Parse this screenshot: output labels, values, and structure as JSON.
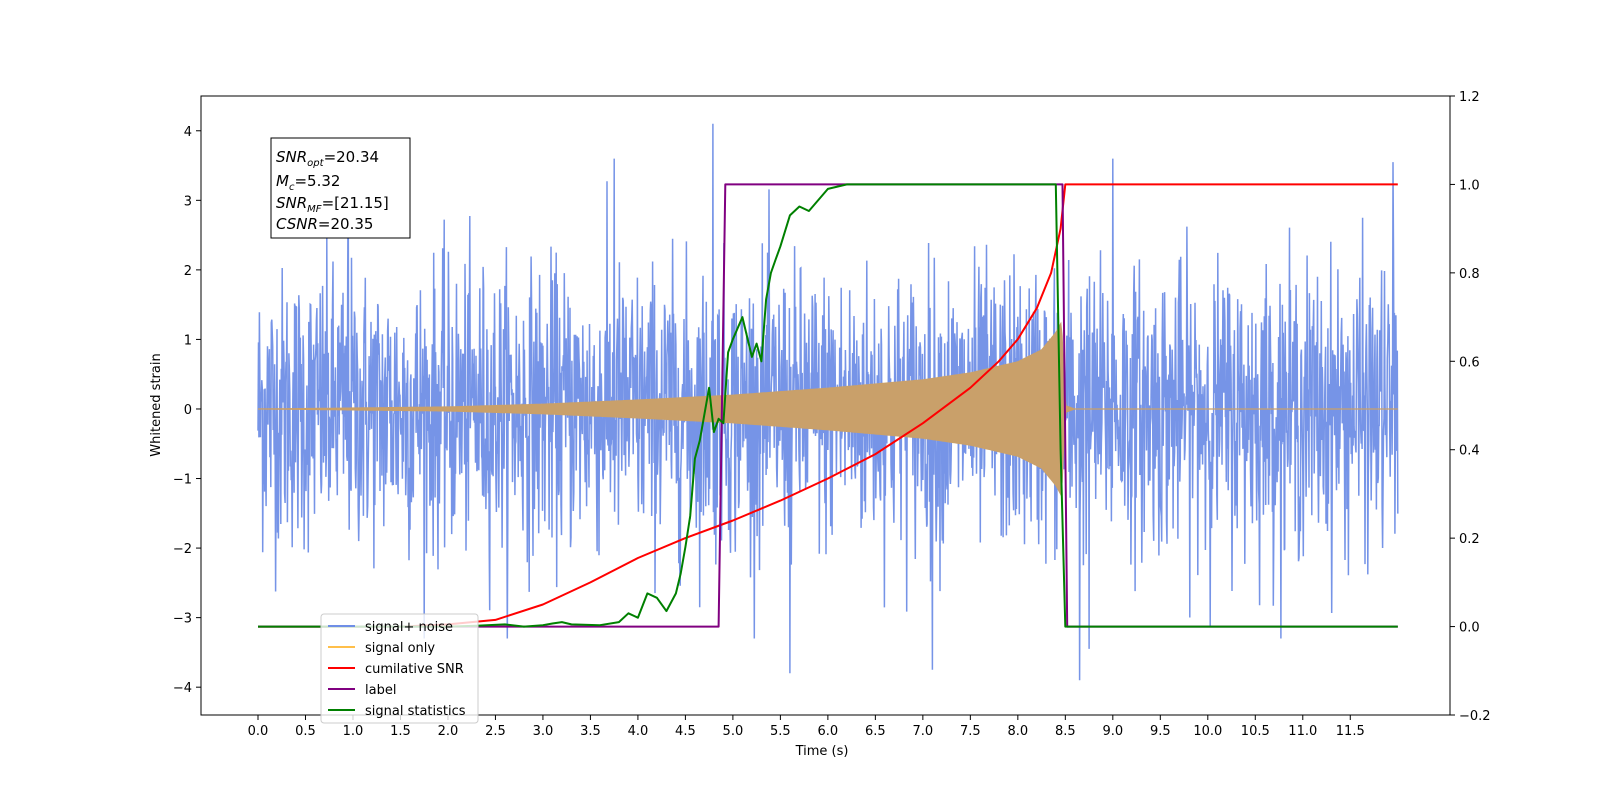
{
  "chart_data": {
    "type": "line",
    "title": "",
    "xlabel": "Time (s)",
    "ylabel": "Whitened strain",
    "xlim": [
      -0.6,
      12.55
    ],
    "ylim": [
      -4.4,
      4.5
    ],
    "y2lim": [
      -0.2,
      1.2
    ],
    "x_ticks": [
      "0.0",
      "0.5",
      "1.0",
      "1.5",
      "2.0",
      "2.5",
      "3.0",
      "3.5",
      "4.0",
      "4.5",
      "5.0",
      "5.5",
      "6.0",
      "6.5",
      "7.0",
      "7.5",
      "8.0",
      "8.5",
      "9.0",
      "9.5",
      "10.0",
      "10.5",
      "11.0",
      "11.5"
    ],
    "y_ticks": [
      "4",
      "3",
      "2",
      "1",
      "0",
      "−1",
      "−2",
      "−3",
      "−4"
    ],
    "y2_ticks": [
      "1.2",
      "1.0",
      "0.8",
      "0.6",
      "0.4",
      "0.2",
      "0.0",
      "−0.2"
    ],
    "grid": false,
    "legend_position": "lower-left",
    "legend": [
      {
        "label": "signal+ noise",
        "color": "#6f8ee6"
      },
      {
        "label": "signal only",
        "color": "#ffbf4a"
      },
      {
        "label": "cumilative SNR",
        "color": "#ff0000"
      },
      {
        "label": "label",
        "color": "#800080"
      },
      {
        "label": "signal statistics",
        "color": "#008000"
      }
    ],
    "info_box": {
      "lines": [
        {
          "name": "SNR",
          "sub": "opt",
          "rest": "=20.34"
        },
        {
          "name": "M",
          "sub": "c",
          "rest": "=5.32"
        },
        {
          "name": "SNR",
          "sub": "MF",
          "rest": "=[21.15]"
        },
        {
          "name": "CSNR",
          "sub": "",
          "rest": "=20.35"
        }
      ]
    },
    "series": [
      {
        "name": "signal+ noise",
        "axis": "left",
        "color": "#6f8ee6",
        "noise_sigma": 1.0,
        "x_range": [
          0.0,
          12.0
        ],
        "extremes": [
          {
            "x": 4.79,
            "y": 4.1
          },
          {
            "x": 5.6,
            "y": -3.8
          },
          {
            "x": 7.1,
            "y": -3.75
          },
          {
            "x": 8.65,
            "y": -3.9
          },
          {
            "x": 8.75,
            "y": -3.45
          },
          {
            "x": 9.0,
            "y": 3.6
          },
          {
            "x": 11.95,
            "y": 3.55
          },
          {
            "x": 3.75,
            "y": 3.6
          },
          {
            "x": 0.95,
            "y": 3.4
          }
        ]
      },
      {
        "name": "signal only",
        "axis": "left",
        "color": "#c9a06a",
        "envelope": [
          {
            "x": 0.0,
            "amp": 0.0
          },
          {
            "x": 2.0,
            "amp": 0.03
          },
          {
            "x": 3.0,
            "amp": 0.07
          },
          {
            "x": 4.0,
            "amp": 0.13
          },
          {
            "x": 5.0,
            "amp": 0.2
          },
          {
            "x": 6.0,
            "amp": 0.3
          },
          {
            "x": 7.0,
            "amp": 0.42
          },
          {
            "x": 7.5,
            "amp": 0.52
          },
          {
            "x": 8.0,
            "amp": 0.68
          },
          {
            "x": 8.25,
            "amp": 0.85
          },
          {
            "x": 8.4,
            "amp": 1.1
          },
          {
            "x": 8.46,
            "amp": 1.25
          },
          {
            "x": 8.5,
            "amp": 0.05
          },
          {
            "x": 8.6,
            "amp": 0.0
          },
          {
            "x": 12.0,
            "amp": 0.0
          }
        ]
      },
      {
        "name": "cumilative SNR",
        "axis": "right",
        "color": "#ff0000",
        "x": [
          0.0,
          1.0,
          1.5,
          2.0,
          2.5,
          3.0,
          3.5,
          4.0,
          4.5,
          5.0,
          5.5,
          6.0,
          6.5,
          7.0,
          7.5,
          7.8,
          8.0,
          8.2,
          8.35,
          8.45,
          8.5,
          9.0,
          10.0,
          11.0,
          12.0
        ],
        "y": [
          0.0,
          0.0,
          0.0,
          0.005,
          0.015,
          0.05,
          0.1,
          0.155,
          0.2,
          0.24,
          0.285,
          0.335,
          0.39,
          0.46,
          0.54,
          0.6,
          0.65,
          0.72,
          0.8,
          0.9,
          1.0,
          1.0,
          1.0,
          1.0,
          1.0
        ]
      },
      {
        "name": "label",
        "axis": "right",
        "color": "#800080",
        "x": [
          0.0,
          4.85,
          4.92,
          8.47,
          8.52,
          12.0
        ],
        "y": [
          0.0,
          0.0,
          1.0,
          1.0,
          0.0,
          0.0
        ]
      },
      {
        "name": "signal statistics",
        "axis": "right",
        "color": "#008000",
        "x": [
          0.0,
          2.0,
          2.3,
          2.6,
          2.8,
          3.0,
          3.1,
          3.2,
          3.3,
          3.6,
          3.8,
          3.9,
          4.0,
          4.1,
          4.2,
          4.3,
          4.4,
          4.45,
          4.5,
          4.55,
          4.6,
          4.65,
          4.7,
          4.75,
          4.8,
          4.85,
          4.9,
          4.95,
          5.0,
          5.1,
          5.2,
          5.25,
          5.3,
          5.35,
          5.4,
          5.45,
          5.5,
          5.6,
          5.7,
          5.8,
          6.0,
          6.2,
          6.5,
          7.0,
          8.0,
          8.4,
          8.45,
          8.5,
          8.55,
          12.0
        ],
        "y": [
          0.0,
          0.0,
          0.002,
          0.005,
          0.0,
          0.003,
          0.007,
          0.01,
          0.005,
          0.003,
          0.01,
          0.03,
          0.02,
          0.075,
          0.065,
          0.035,
          0.075,
          0.12,
          0.18,
          0.25,
          0.38,
          0.42,
          0.48,
          0.54,
          0.44,
          0.47,
          0.46,
          0.62,
          0.65,
          0.7,
          0.61,
          0.64,
          0.6,
          0.74,
          0.8,
          0.83,
          0.86,
          0.93,
          0.95,
          0.94,
          0.99,
          1.0,
          1.0,
          1.0,
          1.0,
          1.0,
          0.4,
          0.0,
          0.0,
          0.0
        ]
      }
    ]
  }
}
